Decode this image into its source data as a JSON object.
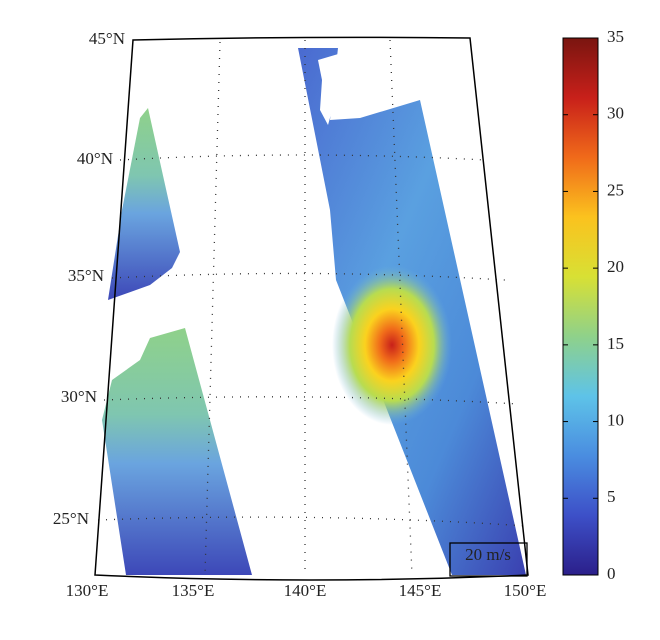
{
  "map": {
    "lat_labels": [
      "45°N",
      "40°N",
      "35°N",
      "30°N",
      "25°N"
    ],
    "lon_labels": [
      "130°E",
      "135°E",
      "140°E",
      "145°E",
      "150°E"
    ],
    "scale_label": "20 m/s"
  },
  "colorbar": {
    "lim": [
      0,
      35
    ],
    "ticks": [
      0,
      5,
      10,
      15,
      20,
      25,
      30,
      35
    ],
    "colors": [
      "#2b1f8a",
      "#3d50c8",
      "#4a8de0",
      "#5ec3e8",
      "#8fd18a",
      "#d8e034",
      "#fbc21e",
      "#f06a1a",
      "#c8201a",
      "#7a1510"
    ]
  }
}
